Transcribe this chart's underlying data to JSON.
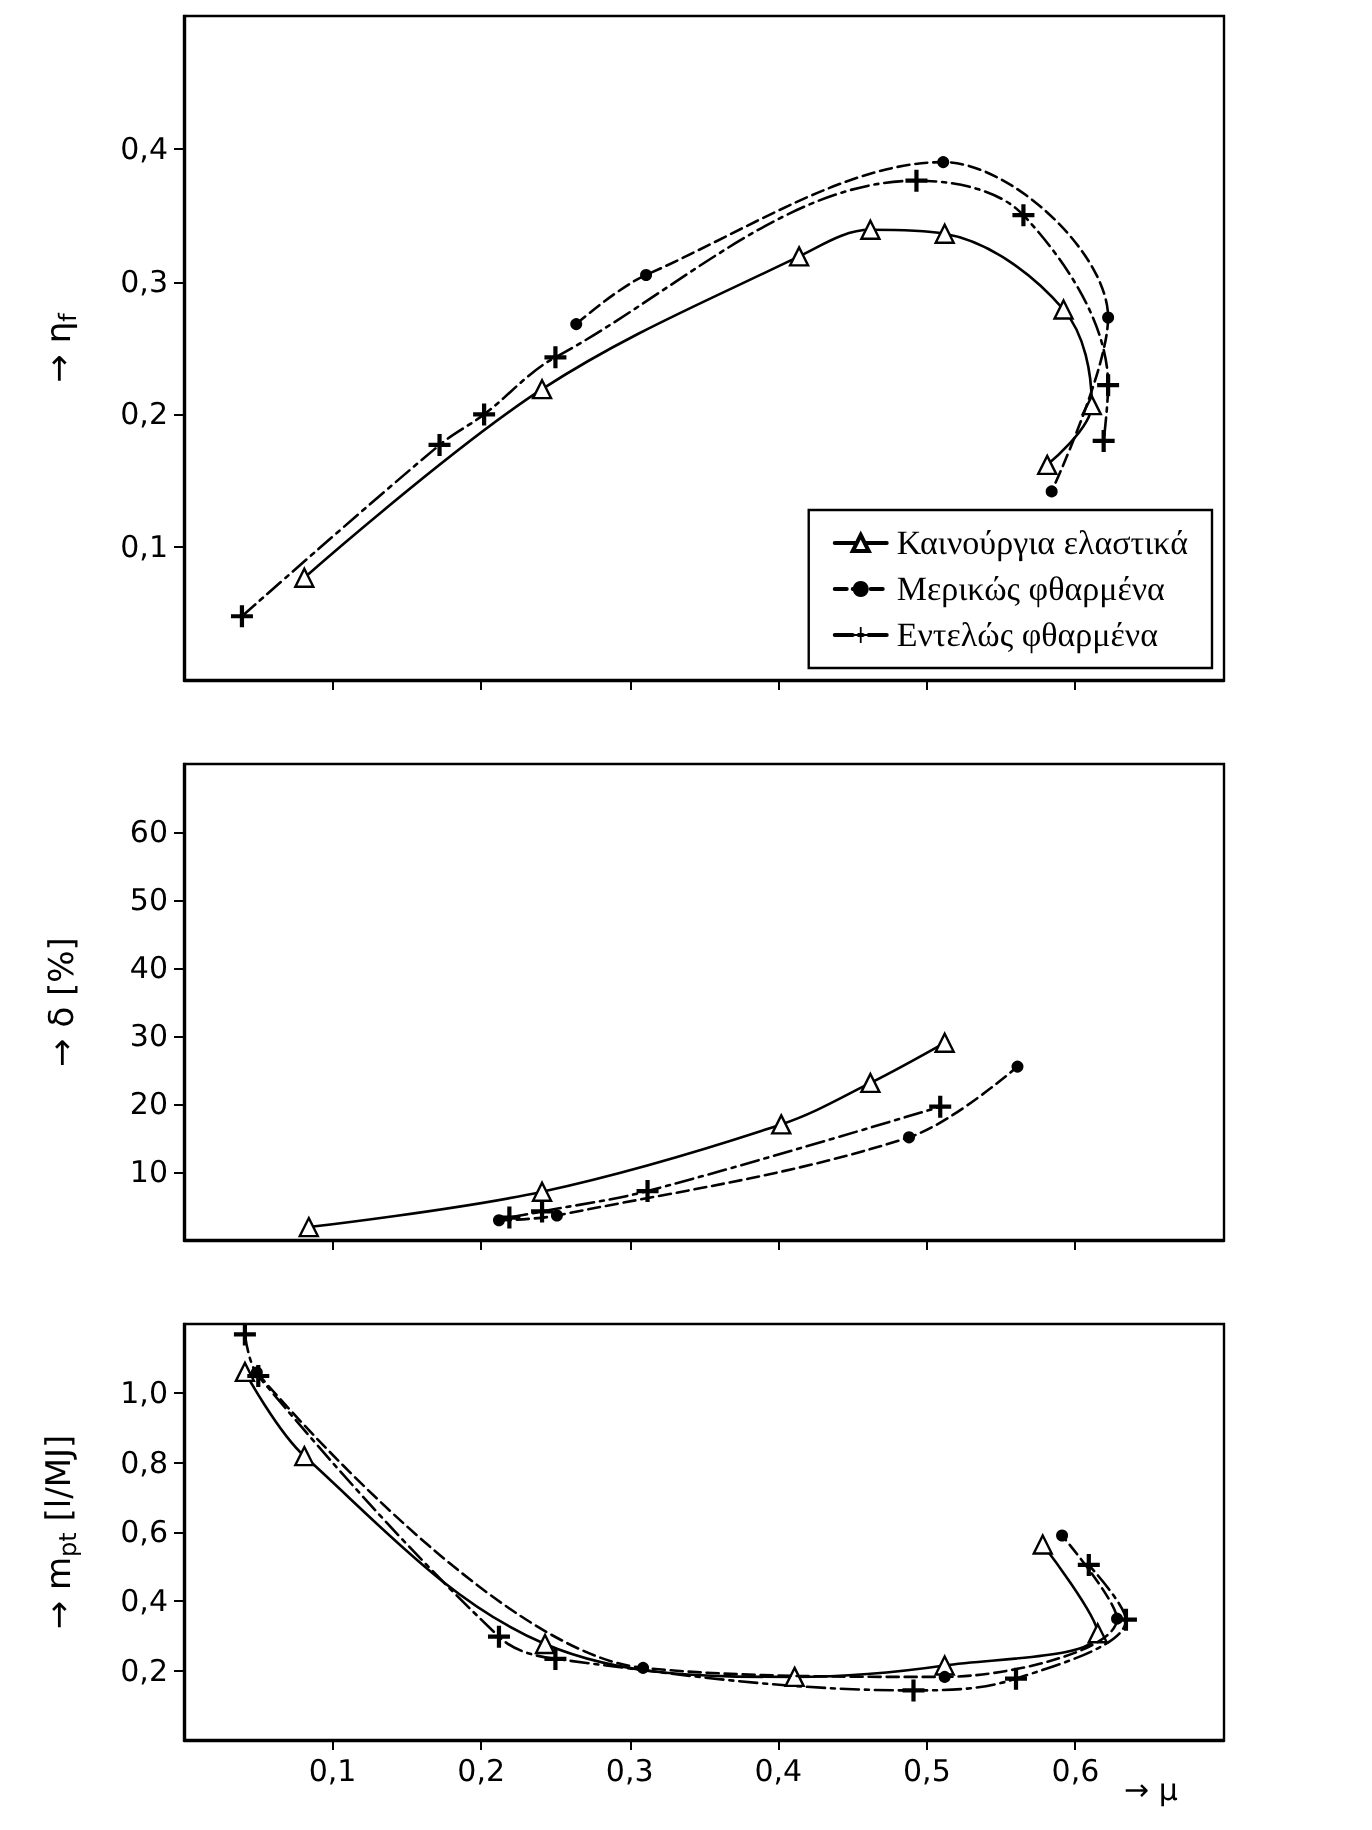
{
  "chart_data": [
    {
      "type": "line",
      "ylabel": "→ η$_{f}$",
      "xlim": [
        0,
        0.7
      ],
      "xticks": [
        0.1,
        0.2,
        0.3,
        0.4,
        0.5,
        0.6
      ],
      "ylim": [
        0,
        0.5
      ],
      "yticks": [
        {
          "value": 0.1,
          "label": "0,1"
        },
        {
          "value": 0.2,
          "label": "0,2"
        },
        {
          "value": 0.3,
          "label": "0,3"
        },
        {
          "value": 0.4,
          "label": "0,4"
        }
      ],
      "tick_labels": "y",
      "grid": false,
      "legend": "bottom right",
      "series": [
        {
          "name": "Καινούργια ελαστικά",
          "color": "#000000",
          "marker": "triangle",
          "line_style": "solid",
          "x": [
            0.081,
            0.241,
            0.414,
            0.462,
            0.512,
            0.592,
            0.611,
            0.581
          ],
          "values": [
            0.077,
            0.219,
            0.319,
            0.339,
            0.336,
            0.279,
            0.207,
            0.162
          ]
        },
        {
          "name": "Μερικώς φθαρμένα",
          "color": "#000000",
          "marker": "circle",
          "line_style": "dashed",
          "x": [
            0.264,
            0.311,
            0.511,
            0.622,
            0.584
          ],
          "values": [
            0.268,
            0.305,
            0.39,
            0.273,
            0.142
          ]
        },
        {
          "name": "Εντελώς φθαρμένα",
          "color": "#000000",
          "marker": "cross",
          "line_style": "dashdot",
          "x": [
            0.039,
            0.172,
            0.202,
            0.25,
            0.493,
            0.565,
            0.622,
            0.619
          ],
          "values": [
            0.048,
            0.177,
            0.2,
            0.243,
            0.376,
            0.35,
            0.222,
            0.18
          ]
        }
      ]
    },
    {
      "type": "line",
      "ylabel": "→ δ [%]",
      "xlim": [
        0,
        0.7
      ],
      "xticks": [
        0.1,
        0.2,
        0.3,
        0.4,
        0.5,
        0.6
      ],
      "ylim": [
        0,
        70
      ],
      "yticks": [
        10,
        20,
        30,
        40,
        50,
        60
      ],
      "tick_labels": "y",
      "grid": false,
      "series": [
        {
          "color": "#000000",
          "marker": "triangle",
          "line_style": "solid",
          "x": [
            0.084,
            0.241,
            0.402,
            0.462,
            0.512
          ],
          "values": [
            1.9,
            7.1,
            17,
            23.1,
            29
          ]
        },
        {
          "color": "#000000",
          "marker": "circle",
          "line_style": "dashed",
          "x": [
            0.212,
            0.251,
            0.488,
            0.561
          ],
          "values": [
            2.9,
            3.6,
            15.1,
            25.5
          ]
        },
        {
          "color": "#000000",
          "marker": "cross",
          "line_style": "dashdot",
          "x": [
            0.219,
            0.241,
            0.312,
            0.509
          ],
          "values": [
            3.3,
            4.2,
            7.2,
            19.6
          ]
        }
      ]
    },
    {
      "type": "line",
      "ylabel": "→ m$_{pt}$ [l/MJ]",
      "xlabel": "→ μ",
      "xlim": [
        0,
        0.7
      ],
      "xticks": [
        {
          "value": 0.1,
          "label": "0,1"
        },
        {
          "value": 0.2,
          "label": "0,2"
        },
        {
          "value": 0.3,
          "label": "0,3"
        },
        {
          "value": 0.4,
          "label": "0,4"
        },
        {
          "value": 0.5,
          "label": "0,5"
        },
        {
          "value": 0.6,
          "label": "0,6"
        }
      ],
      "ylim": [
        0,
        1.2
      ],
      "yticks": [
        {
          "value": 0.2,
          "label": "0,2"
        },
        {
          "value": 0.4,
          "label": "0,4"
        },
        {
          "value": 0.6,
          "label": "0,6"
        },
        {
          "value": 0.8,
          "label": "0,8"
        },
        {
          "value": 1.0,
          "label": "1,0"
        }
      ],
      "grid": false,
      "series": [
        {
          "color": "#000000",
          "marker": "triangle",
          "line_style": "solid",
          "x": [
            0.041,
            0.081,
            0.243,
            0.411,
            0.512,
            0.615,
            0.578
          ],
          "values": [
            1.062,
            0.819,
            0.277,
            0.182,
            0.215,
            0.308,
            0.564
          ]
        },
        {
          "color": "#000000",
          "marker": "circle",
          "line_style": "dashed",
          "x": [
            0.049,
            0.309,
            0.512,
            0.628,
            0.591
          ],
          "values": [
            1.06,
            0.208,
            0.182,
            0.35,
            0.59
          ]
        },
        {
          "color": "#000000",
          "marker": "cross",
          "line_style": "dashdot",
          "x": [
            0.041,
            0.05,
            0.212,
            0.25,
            0.491,
            0.56,
            0.634,
            0.609
          ],
          "values": [
            1.17,
            1.05,
            0.298,
            0.234,
            0.143,
            0.177,
            0.347,
            0.505
          ]
        }
      ]
    }
  ]
}
